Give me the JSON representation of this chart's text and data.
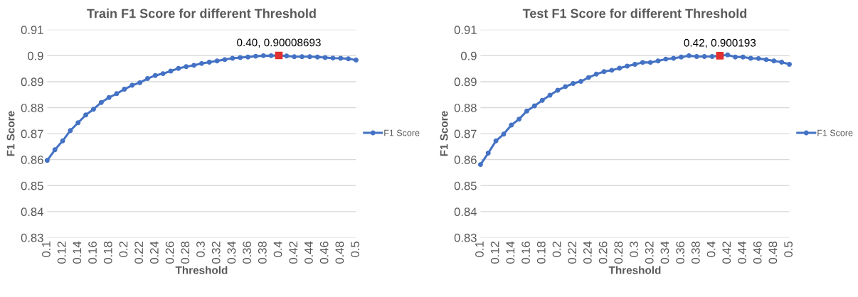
{
  "chart_data": [
    {
      "type": "line",
      "title": "Train F1 Score for different Threshold",
      "xlabel": "Threshold",
      "ylabel": "F1 Score",
      "x": [
        0.1,
        0.11,
        0.12,
        0.13,
        0.14,
        0.15,
        0.16,
        0.17,
        0.18,
        0.19,
        0.2,
        0.21,
        0.22,
        0.23,
        0.24,
        0.25,
        0.26,
        0.27,
        0.28,
        0.29,
        0.3,
        0.31,
        0.32,
        0.33,
        0.34,
        0.35,
        0.36,
        0.37,
        0.38,
        0.39,
        0.4,
        0.41,
        0.42,
        0.43,
        0.44,
        0.45,
        0.46,
        0.47,
        0.48,
        0.49,
        0.5
      ],
      "series": [
        {
          "name": "F1 Score",
          "color": "#4472c4",
          "values": [
            0.8597,
            0.8638,
            0.8672,
            0.8712,
            0.8742,
            0.8772,
            0.8794,
            0.882,
            0.8839,
            0.8854,
            0.8871,
            0.8886,
            0.8896,
            0.8912,
            0.8924,
            0.8931,
            0.8941,
            0.8951,
            0.8958,
            0.8963,
            0.897,
            0.8975,
            0.898,
            0.8985,
            0.899,
            0.8993,
            0.8995,
            0.8998,
            0.9,
            0.9,
            0.9001,
            0.8999,
            0.8996,
            0.8996,
            0.8996,
            0.8995,
            0.8993,
            0.8991,
            0.899,
            0.8988,
            0.8983
          ]
        },
        {
          "type": "scatter",
          "color": "#e03030",
          "marker": "square",
          "x": [
            0.4
          ],
          "values": [
            0.9001
          ]
        }
      ],
      "annotations": [
        {
          "text": "0.40, 0.90008693",
          "x": 0.4,
          "y": 0.9001
        }
      ],
      "xlim": [
        0.1,
        0.5
      ],
      "xticks": [
        0.1,
        0.12,
        0.14,
        0.16,
        0.18,
        0.2,
        0.22,
        0.24,
        0.26,
        0.28,
        0.3,
        0.32,
        0.34,
        0.36,
        0.38,
        0.4,
        0.42,
        0.44,
        0.46,
        0.48,
        0.5
      ],
      "ylim": [
        0.83,
        0.91
      ],
      "yticks": [
        0.83,
        0.84,
        0.85,
        0.86,
        0.87,
        0.88,
        0.89,
        {
          "value": 0.9,
          "label": "0.9"
        },
        0.91
      ],
      "grid": "y",
      "legend": "right",
      "marker": "circle"
    },
    {
      "type": "line",
      "title": "Test F1 Score for different Threshold",
      "xlabel": "Threshold",
      "ylabel": "F1 Score",
      "x": [
        0.1,
        0.11,
        0.12,
        0.13,
        0.14,
        0.15,
        0.16,
        0.17,
        0.18,
        0.19,
        0.2,
        0.21,
        0.22,
        0.23,
        0.24,
        0.25,
        0.26,
        0.27,
        0.28,
        0.29,
        0.3,
        0.31,
        0.32,
        0.33,
        0.34,
        0.35,
        0.36,
        0.37,
        0.38,
        0.39,
        0.4,
        0.41,
        0.42,
        0.43,
        0.44,
        0.45,
        0.46,
        0.47,
        0.48,
        0.49,
        0.5
      ],
      "series": [
        {
          "name": "F1 Score",
          "color": "#4472c4",
          "values": [
            0.8581,
            0.8625,
            0.8672,
            0.8698,
            0.8733,
            0.8756,
            0.8787,
            0.8807,
            0.8828,
            0.8848,
            0.8867,
            0.8881,
            0.8893,
            0.8901,
            0.8916,
            0.8929,
            0.8939,
            0.8944,
            0.8952,
            0.896,
            0.8967,
            0.8974,
            0.8974,
            0.898,
            0.8987,
            0.899,
            0.8995,
            0.9,
            0.8997,
            0.8997,
            0.8997,
            0.9,
            0.9003,
            0.8995,
            0.8995,
            0.899,
            0.8989,
            0.8985,
            0.898,
            0.8975,
            0.8967
          ]
        },
        {
          "type": "scatter",
          "color": "#e03030",
          "marker": "square",
          "x": [
            0.41
          ],
          "values": [
            0.9
          ]
        }
      ],
      "annotations": [
        {
          "text": "0.42, 0.900193",
          "x": 0.41,
          "y": 0.9
        }
      ],
      "xlim": [
        0.1,
        0.5
      ],
      "xticks": [
        0.1,
        0.12,
        0.14,
        0.16,
        0.18,
        0.2,
        0.22,
        0.24,
        0.26,
        0.28,
        0.3,
        0.32,
        0.34,
        0.36,
        0.38,
        0.4,
        0.42,
        0.44,
        0.46,
        0.48,
        0.5
      ],
      "ylim": [
        0.83,
        0.91
      ],
      "yticks": [
        0.83,
        0.84,
        0.85,
        0.86,
        0.87,
        0.88,
        0.89,
        {
          "value": 0.9,
          "label": "0.9"
        },
        0.91
      ],
      "grid": "y",
      "legend": "right",
      "marker": "circle"
    }
  ]
}
